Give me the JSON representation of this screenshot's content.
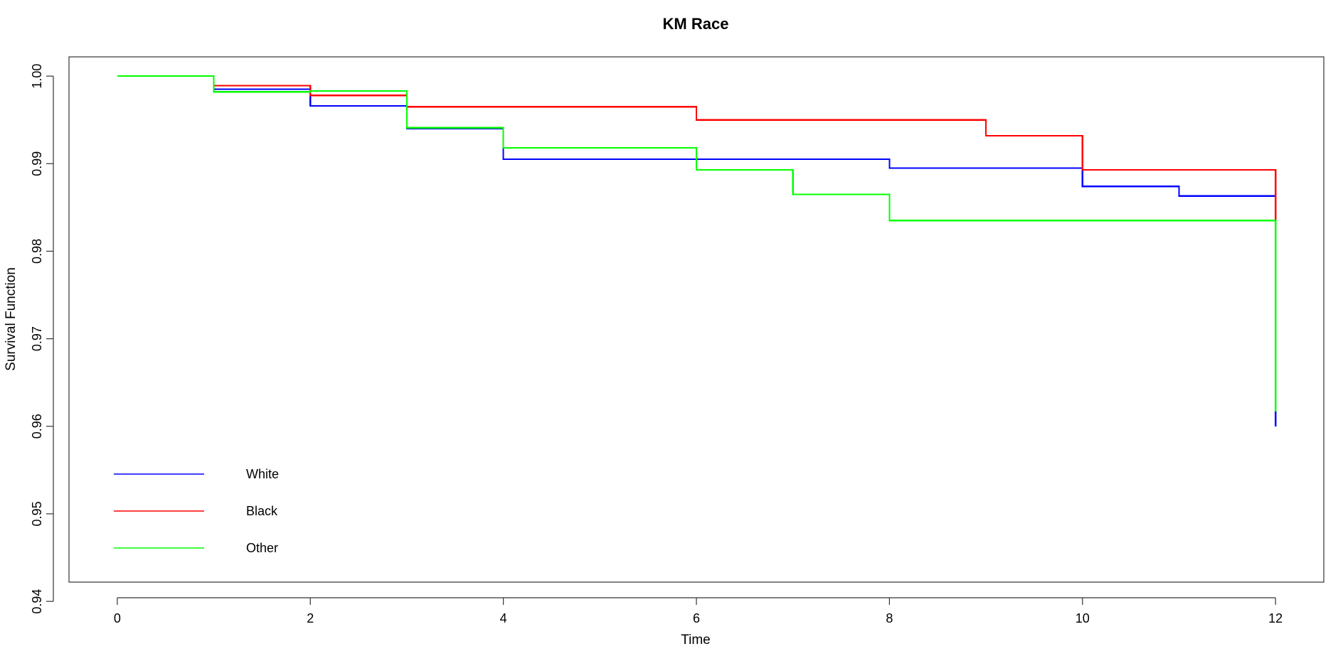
{
  "chart_data": {
    "type": "line",
    "title": "KM Race",
    "xlabel": "Time",
    "ylabel": "Survival Function",
    "xlim": [
      -0.5,
      12.5
    ],
    "ylim": [
      0.9422,
      1.0022
    ],
    "x_ticks": [
      0,
      2,
      4,
      6,
      8,
      10,
      12
    ],
    "y_ticks": [
      0.94,
      0.95,
      0.96,
      0.97,
      0.98,
      0.99,
      1.0
    ],
    "y_tick_labels": [
      "0.94",
      "0.95",
      "0.96",
      "0.97",
      "0.98",
      "0.99",
      "1.00"
    ],
    "grid": false,
    "legend_position": "bottom-left",
    "series": [
      {
        "name": "White",
        "color": "#0000ff",
        "steps": [
          [
            0,
            1.0
          ],
          [
            1,
            0.9985
          ],
          [
            2,
            0.9966
          ],
          [
            3,
            0.994
          ],
          [
            4,
            0.9905
          ],
          [
            8,
            0.9895
          ],
          [
            10,
            0.9874
          ],
          [
            11,
            0.9863
          ],
          [
            12,
            0.96
          ]
        ]
      },
      {
        "name": "Black",
        "color": "#ff0000",
        "steps": [
          [
            0,
            1.0
          ],
          [
            1,
            0.9989
          ],
          [
            2,
            0.9978
          ],
          [
            3,
            0.9965
          ],
          [
            6,
            0.995
          ],
          [
            9,
            0.9932
          ],
          [
            10,
            0.9893
          ],
          [
            12,
            0.9835
          ]
        ]
      },
      {
        "name": "Other",
        "color": "#00ff00",
        "steps": [
          [
            0,
            1.0
          ],
          [
            1,
            0.9982
          ],
          [
            2,
            0.9983
          ],
          [
            3,
            0.9941
          ],
          [
            4,
            0.9918
          ],
          [
            6,
            0.9893
          ],
          [
            7,
            0.9865
          ],
          [
            8,
            0.9835
          ],
          [
            12,
            0.9617
          ]
        ]
      }
    ]
  }
}
